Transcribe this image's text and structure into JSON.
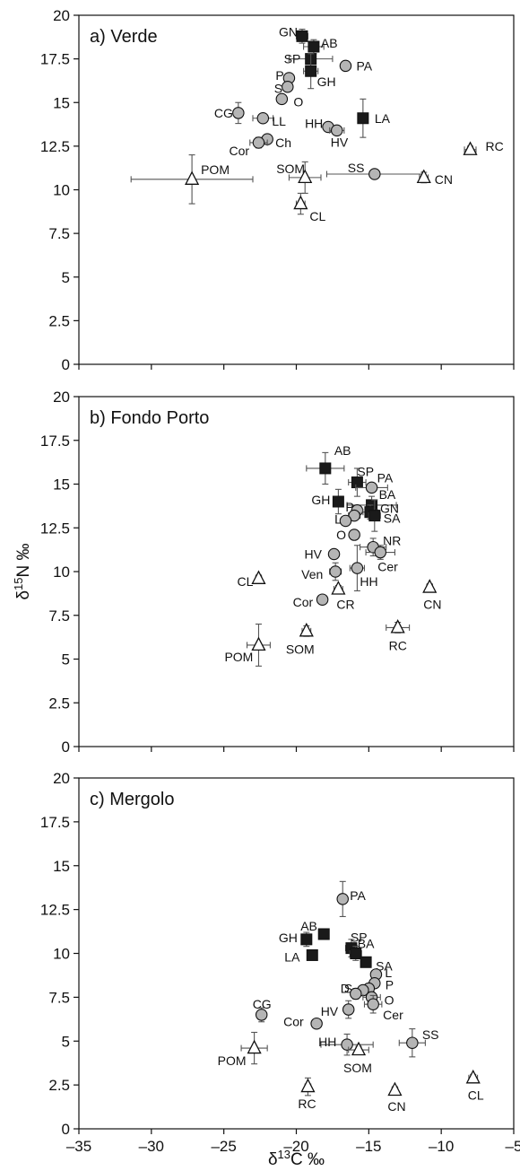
{
  "chart_data": [
    {
      "type": "scatter",
      "title": "a) Verde",
      "xlabel": "",
      "ylabel": "",
      "xlim": [
        -35,
        -5
      ],
      "ylim": [
        0,
        20
      ],
      "x_ticks": [
        -35,
        -30,
        -25,
        -20,
        -15,
        -10,
        -5
      ],
      "y_ticks": [
        "0",
        "2.5",
        "5",
        "7.5",
        "10",
        "12.5",
        "15",
        "17.5",
        "20"
      ],
      "show_x_tick_labels": false,
      "points": [
        {
          "label": "GN",
          "group": "square",
          "x": -19.6,
          "y": 18.8,
          "xerr": 0.4,
          "yerr": 0.4
        },
        {
          "label": "AB",
          "group": "square",
          "x": -18.8,
          "y": 18.2,
          "xerr": 0.7,
          "yerr": 0.4
        },
        {
          "label": "SP",
          "group": "square",
          "x": -19.0,
          "y": 17.5,
          "xerr": 1.5,
          "yerr": 0.3
        },
        {
          "label": "PA",
          "group": "circle",
          "x": -16.6,
          "y": 17.1,
          "xerr": 0.3,
          "yerr": 0.2
        },
        {
          "label": "GH",
          "group": "square",
          "x": -19.0,
          "y": 16.8,
          "xerr": 0.5,
          "yerr": 1.0
        },
        {
          "label": "P",
          "group": "circle",
          "x": -20.5,
          "y": 16.4,
          "xerr": 0.3,
          "yerr": 0.2
        },
        {
          "label": "S",
          "group": "circle",
          "x": -20.6,
          "y": 15.9,
          "xerr": 0.3,
          "yerr": 0.2
        },
        {
          "label": "O",
          "group": "circle",
          "x": -21.0,
          "y": 15.2,
          "xerr": 0.2,
          "yerr": 0.2
        },
        {
          "label": "CG",
          "group": "circle",
          "x": -24.0,
          "y": 14.4,
          "xerr": 0.3,
          "yerr": 0.6
        },
        {
          "label": "LL",
          "group": "circle",
          "x": -22.3,
          "y": 14.1,
          "xerr": 0.7,
          "yerr": 0.2
        },
        {
          "label": "LA",
          "group": "square",
          "x": -15.4,
          "y": 14.1,
          "xerr": 0.2,
          "yerr": 1.1
        },
        {
          "label": "HH",
          "group": "circle",
          "x": -17.8,
          "y": 13.6,
          "xerr": 0.3,
          "yerr": 0.2
        },
        {
          "label": "HV",
          "group": "circle",
          "x": -17.2,
          "y": 13.4,
          "xerr": 0.5,
          "yerr": 0.2
        },
        {
          "label": "Ch",
          "group": "circle",
          "x": -22.0,
          "y": 12.9,
          "xerr": 0.3,
          "yerr": 0.2
        },
        {
          "label": "Cor",
          "group": "circle",
          "x": -22.6,
          "y": 12.7,
          "xerr": 0.6,
          "yerr": 0.3
        },
        {
          "label": "RC",
          "group": "triangle",
          "x": -8.0,
          "y": 12.3,
          "xerr": 0.4,
          "yerr": 0.2
        },
        {
          "label": "POM",
          "group": "triangle",
          "x": -27.2,
          "y": 10.6,
          "xerr": 4.2,
          "yerr": 1.4
        },
        {
          "label": "SOM",
          "group": "triangle",
          "x": -19.4,
          "y": 10.7,
          "xerr": 1.1,
          "yerr": 0.9
        },
        {
          "label": "SS",
          "group": "circle",
          "x": -14.6,
          "y": 10.9,
          "xerr": 3.3,
          "yerr": 0.2
        },
        {
          "label": "CN",
          "group": "triangle",
          "x": -11.2,
          "y": 10.7,
          "xerr": 0.3,
          "yerr": 0.3
        },
        {
          "label": "CL",
          "group": "triangle",
          "x": -19.7,
          "y": 9.2,
          "xerr": 0.3,
          "yerr": 0.6
        }
      ]
    },
    {
      "type": "scatter",
      "title": "b) Fondo Porto",
      "xlabel": "",
      "ylabel": "δ15N ‰",
      "xlim": [
        -35,
        -5
      ],
      "ylim": [
        0,
        20
      ],
      "x_ticks": [
        -35,
        -30,
        -25,
        -20,
        -15,
        -10,
        -5
      ],
      "y_ticks": [
        "0",
        "2.5",
        "5",
        "7.5",
        "10",
        "12.5",
        "15",
        "17.5",
        "20"
      ],
      "show_x_tick_labels": false,
      "points": [
        {
          "label": "AB",
          "group": "square",
          "x": -18.0,
          "y": 15.9,
          "xerr": 1.3,
          "yerr": 0.9
        },
        {
          "label": "SP",
          "group": "square",
          "x": -15.8,
          "y": 15.1,
          "xerr": 0.6,
          "yerr": 0.8
        },
        {
          "label": "PA",
          "group": "circle",
          "x": -14.8,
          "y": 14.8,
          "xerr": 1.1,
          "yerr": 0.2
        },
        {
          "label": "GH",
          "group": "square",
          "x": -17.1,
          "y": 14.0,
          "xerr": 0.3,
          "yerr": 0.7
        },
        {
          "label": "BA",
          "group": "square",
          "x": -14.8,
          "y": 13.8,
          "xerr": 1.7,
          "yerr": 0.5
        },
        {
          "label": "P",
          "group": "circle",
          "x": -15.8,
          "y": 13.5,
          "xerr": 0.3,
          "yerr": 0.2
        },
        {
          "label": "GN",
          "group": "square",
          "x": -14.9,
          "y": 13.4,
          "xerr": 0.5,
          "yerr": 0.4
        },
        {
          "label": "SA",
          "group": "square",
          "x": -14.6,
          "y": 13.2,
          "xerr": 0.4,
          "yerr": 0.9
        },
        {
          "label": "L",
          "group": "circle",
          "x": -16.0,
          "y": 13.2,
          "xerr": 0.4,
          "yerr": 0.2
        },
        {
          "label": "",
          "group": "circle",
          "x": -16.6,
          "y": 12.9,
          "xerr": 0.3,
          "yerr": 0.2
        },
        {
          "label": "O",
          "group": "circle",
          "x": -16.0,
          "y": 12.1,
          "xerr": 0.2,
          "yerr": 0.2
        },
        {
          "label": "NR",
          "group": "circle",
          "x": -14.7,
          "y": 11.4,
          "xerr": 0.9,
          "yerr": 0.5
        },
        {
          "label": "Cer",
          "group": "circle",
          "x": -14.2,
          "y": 11.1,
          "xerr": 1.0,
          "yerr": 0.4
        },
        {
          "label": "HV",
          "group": "circle",
          "x": -17.4,
          "y": 11.0,
          "xerr": 0.2,
          "yerr": 0.2
        },
        {
          "label": "HH",
          "group": "circle",
          "x": -15.8,
          "y": 10.2,
          "xerr": 0.5,
          "yerr": 1.3
        },
        {
          "label": "Ven",
          "group": "circle",
          "x": -17.3,
          "y": 10.0,
          "xerr": 0.4,
          "yerr": 0.5
        },
        {
          "label": "CL",
          "group": "triangle",
          "x": -22.6,
          "y": 9.6,
          "xerr": 0.2,
          "yerr": 0.2
        },
        {
          "label": "CN",
          "group": "triangle",
          "x": -10.8,
          "y": 9.1,
          "xerr": 0.2,
          "yerr": 0.2
        },
        {
          "label": "CR",
          "group": "triangle",
          "x": -17.1,
          "y": 9.0,
          "xerr": 0.3,
          "yerr": 0.2
        },
        {
          "label": "Cor",
          "group": "circle",
          "x": -18.2,
          "y": 8.4,
          "xerr": 0.3,
          "yerr": 0.2
        },
        {
          "label": "RC",
          "group": "triangle",
          "x": -13.0,
          "y": 6.8,
          "xerr": 0.8,
          "yerr": 0.3
        },
        {
          "label": "SOM",
          "group": "triangle",
          "x": -19.3,
          "y": 6.6,
          "xerr": 0.3,
          "yerr": 0.3
        },
        {
          "label": "POM",
          "group": "triangle",
          "x": -22.6,
          "y": 5.8,
          "xerr": 0.8,
          "yerr": 1.2
        }
      ]
    },
    {
      "type": "scatter",
      "title": "c) Mergolo",
      "xlabel": "δ13C ‰",
      "ylabel": "",
      "xlim": [
        -35,
        -5
      ],
      "ylim": [
        0,
        20
      ],
      "x_ticks": [
        -35,
        -30,
        -25,
        -20,
        -15,
        -10,
        -5
      ],
      "x_tick_labels": [
        "–35",
        "–30",
        "–25",
        "–20",
        "–15",
        "–10",
        "–5"
      ],
      "y_ticks": [
        "0",
        "2.5",
        "5",
        "7.5",
        "10",
        "12.5",
        "15",
        "17.5",
        "20"
      ],
      "show_x_tick_labels": true,
      "points": [
        {
          "label": "PA",
          "group": "circle",
          "x": -16.8,
          "y": 13.1,
          "xerr": 0.2,
          "yerr": 1.0
        },
        {
          "label": "AB",
          "group": "square",
          "x": -18.1,
          "y": 11.1,
          "xerr": 0.2,
          "yerr": 0.2
        },
        {
          "label": "GH",
          "group": "square",
          "x": -19.3,
          "y": 10.8,
          "xerr": 0.2,
          "yerr": 0.4
        },
        {
          "label": "SP",
          "group": "square",
          "x": -16.2,
          "y": 10.3,
          "xerr": 0.4,
          "yerr": 0.5
        },
        {
          "label": "BA",
          "group": "square",
          "x": -15.9,
          "y": 10.0,
          "xerr": 0.4,
          "yerr": 0.4
        },
        {
          "label": "LA",
          "group": "square",
          "x": -18.9,
          "y": 9.9,
          "xerr": 0.2,
          "yerr": 0.2
        },
        {
          "label": "SA",
          "group": "square",
          "x": -15.2,
          "y": 9.5,
          "xerr": 0.3,
          "yerr": 0.2
        },
        {
          "label": "L",
          "group": "circle",
          "x": -14.5,
          "y": 8.8,
          "xerr": 0.2,
          "yerr": 0.2
        },
        {
          "label": "P",
          "group": "circle",
          "x": -14.6,
          "y": 8.3,
          "xerr": 0.2,
          "yerr": 0.2
        },
        {
          "label": "",
          "group": "circle",
          "x": -15.0,
          "y": 8.0,
          "xerr": 0.2,
          "yerr": 0.2
        },
        {
          "label": "S",
          "group": "circle",
          "x": -15.4,
          "y": 7.9,
          "xerr": 0.2,
          "yerr": 0.2
        },
        {
          "label": "D",
          "group": "circle",
          "x": -15.9,
          "y": 7.7,
          "xerr": 0.3,
          "yerr": 0.3
        },
        {
          "label": "O",
          "group": "circle",
          "x": -14.8,
          "y": 7.5,
          "xerr": 0.6,
          "yerr": 0.3
        },
        {
          "label": "Cer",
          "group": "circle",
          "x": -14.7,
          "y": 7.1,
          "xerr": 0.6,
          "yerr": 0.5
        },
        {
          "label": "HV",
          "group": "circle",
          "x": -16.4,
          "y": 6.8,
          "xerr": 0.3,
          "yerr": 0.5
        },
        {
          "label": "CG",
          "group": "circle",
          "x": -22.4,
          "y": 6.5,
          "xerr": 0.3,
          "yerr": 0.4
        },
        {
          "label": "Cor",
          "group": "circle",
          "x": -18.6,
          "y": 6.0,
          "xerr": 0.3,
          "yerr": 0.2
        },
        {
          "label": "SS",
          "group": "circle",
          "x": -12.0,
          "y": 4.9,
          "xerr": 0.9,
          "yerr": 0.8
        },
        {
          "label": "HH",
          "group": "circle",
          "x": -16.5,
          "y": 4.8,
          "xerr": 1.8,
          "yerr": 0.6
        },
        {
          "label": "POM",
          "group": "triangle",
          "x": -22.9,
          "y": 4.6,
          "xerr": 0.9,
          "yerr": 0.9
        },
        {
          "label": "SOM",
          "group": "triangle",
          "x": -15.7,
          "y": 4.5,
          "xerr": 0.7,
          "yerr": 0.2
        },
        {
          "label": "CL",
          "group": "triangle",
          "x": -7.8,
          "y": 2.9,
          "xerr": 0.3,
          "yerr": 0.2
        },
        {
          "label": "RC",
          "group": "triangle",
          "x": -19.2,
          "y": 2.4,
          "xerr": 0.2,
          "yerr": 0.5
        },
        {
          "label": "CN",
          "group": "triangle",
          "x": -13.2,
          "y": 2.2,
          "xerr": 0.2,
          "yerr": 0.2
        }
      ]
    }
  ],
  "colors": {
    "circle_fill": "#b5b5b5",
    "square_fill": "#1a1a1a",
    "triangle_fill": "#ffffff",
    "stroke": "#111111",
    "error_bar": "#555555"
  }
}
